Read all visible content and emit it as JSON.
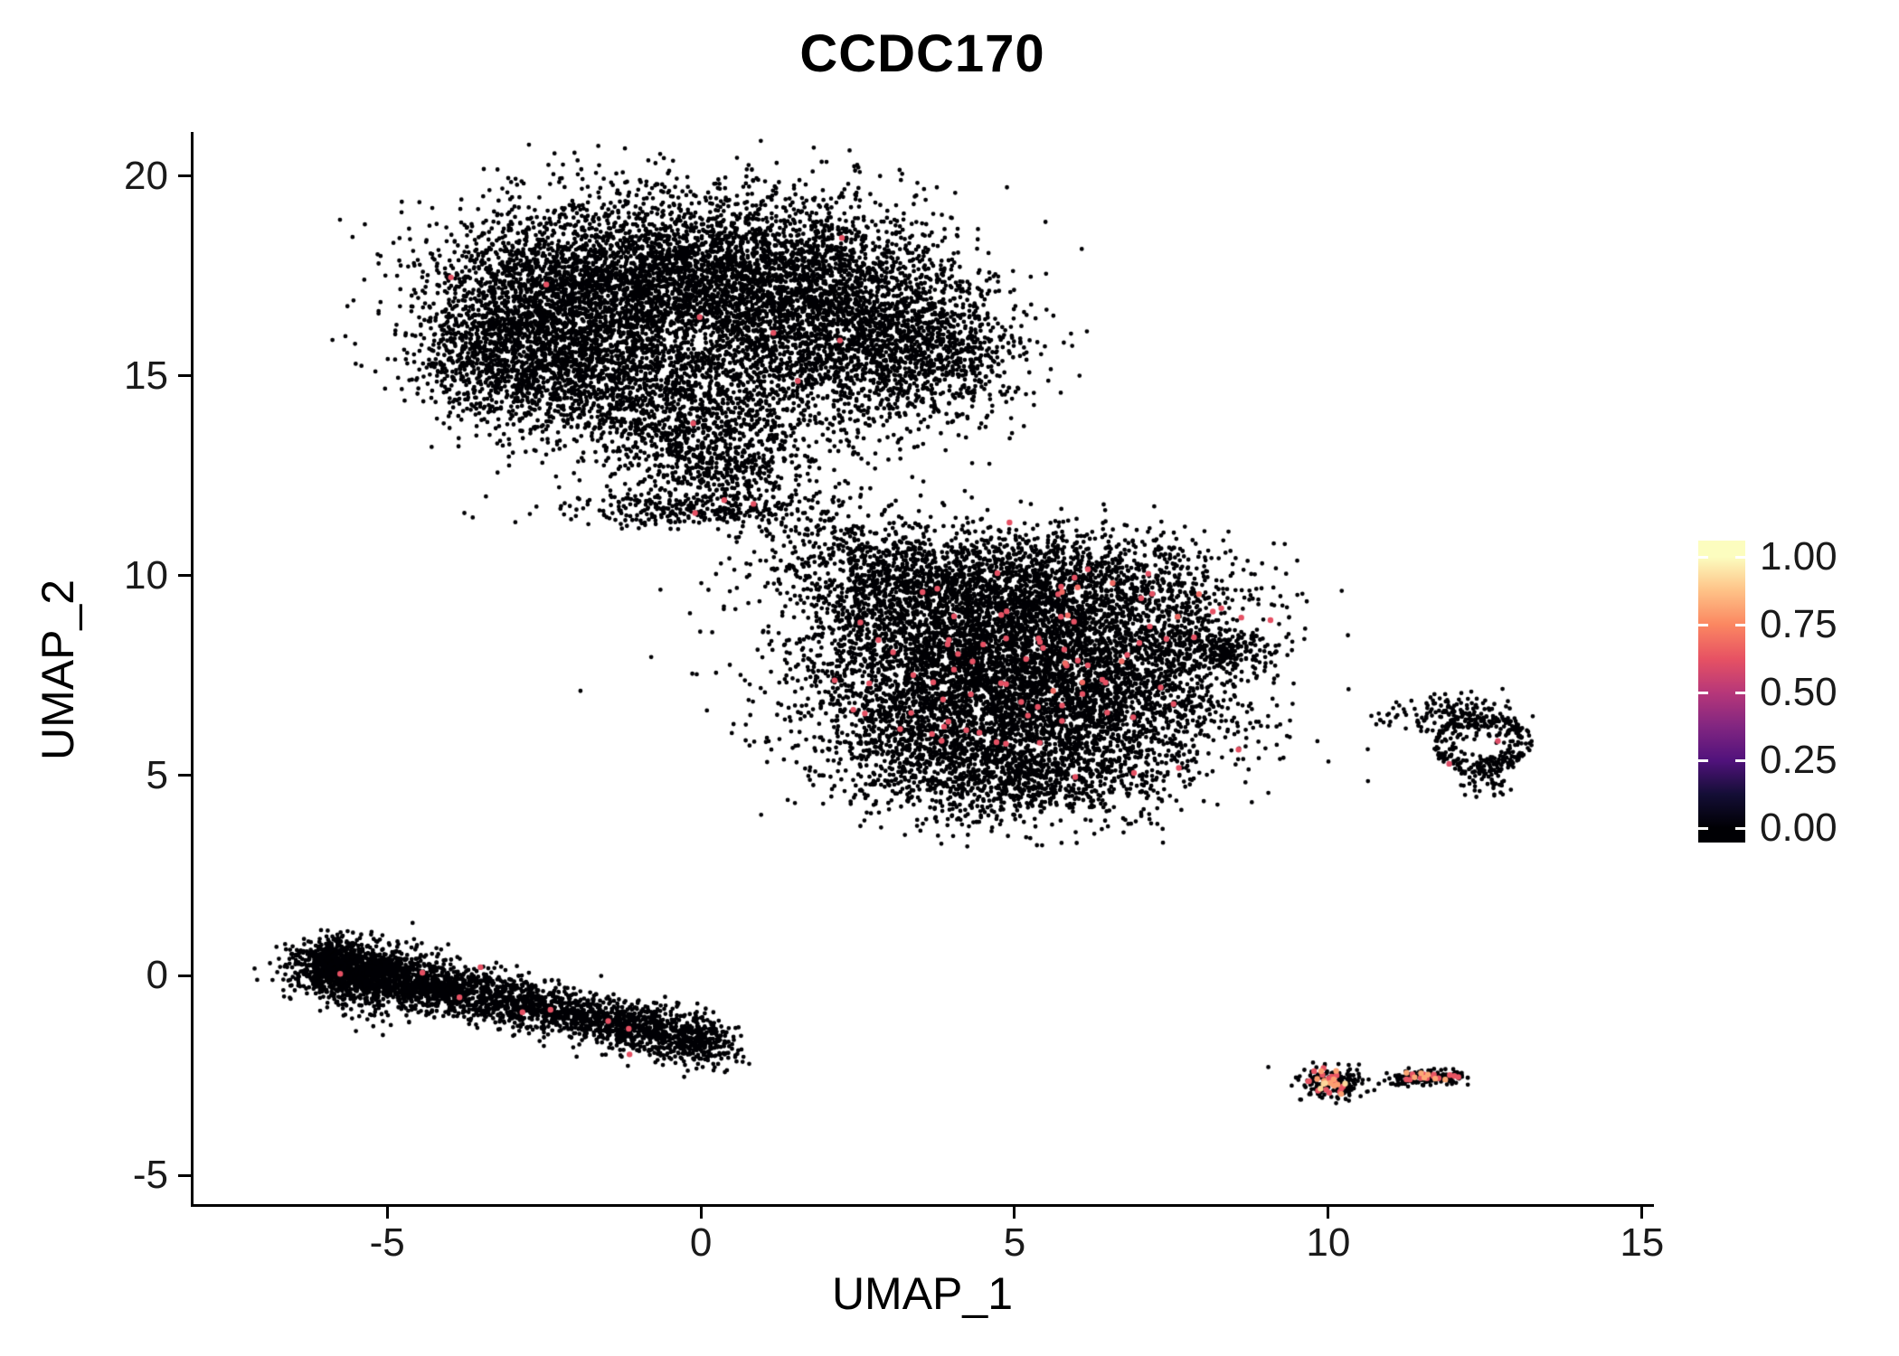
{
  "chart_data": {
    "type": "scatter",
    "title": "CCDC170",
    "xlabel": "UMAP_1",
    "ylabel": "UMAP_2",
    "xlim": [
      -8.13,
      15.19
    ],
    "ylim": [
      -5.79,
      21.06
    ],
    "x_ticks": [
      -5,
      0,
      5,
      10,
      15
    ],
    "y_ticks": [
      -5,
      0,
      5,
      10,
      15,
      20
    ],
    "grid": false,
    "legend": {
      "position": "right",
      "ticks": [
        {
          "value": 1.0,
          "label": "1.00"
        },
        {
          "value": 0.75,
          "label": "0.75"
        },
        {
          "value": 0.5,
          "label": "0.50"
        },
        {
          "value": 0.25,
          "label": "0.25"
        },
        {
          "value": 0.0,
          "label": "0.00"
        }
      ]
    },
    "colormap_stops": [
      [
        0,
        "#000004"
      ],
      [
        0.125,
        "#140e36"
      ],
      [
        0.25,
        "#51127c"
      ],
      [
        0.375,
        "#822681"
      ],
      [
        0.5,
        "#b73779"
      ],
      [
        0.625,
        "#e75263"
      ],
      [
        0.75,
        "#fb8761"
      ],
      [
        0.875,
        "#fec287"
      ],
      [
        1,
        "#fcfdbf"
      ]
    ],
    "point_style": {
      "radius": 2.4,
      "expressed_radius": 3.2
    },
    "clusters": [
      {
        "name": "top-blob-core-left",
        "type": "gauss",
        "n": 3000,
        "cx": -2.2,
        "cy": 16.6,
        "sx": 1.15,
        "sy": 1.35,
        "v": 0
      },
      {
        "name": "top-blob-core-top",
        "type": "gauss",
        "n": 2600,
        "cx": 0.3,
        "cy": 17.6,
        "sx": 1.4,
        "sy": 1.05,
        "v": 0
      },
      {
        "name": "top-blob-core-right",
        "type": "gauss",
        "n": 2200,
        "cx": 2.2,
        "cy": 16.3,
        "sx": 1.15,
        "sy": 1.3,
        "v": 0
      },
      {
        "name": "top-blob-right-lobe",
        "type": "gauss",
        "n": 700,
        "cx": 3.7,
        "cy": 15.7,
        "sx": 0.75,
        "sy": 0.85,
        "v": 0
      },
      {
        "name": "top-blob-bottom",
        "type": "gauss",
        "n": 1000,
        "cx": -0.6,
        "cy": 14.6,
        "sx": 1.3,
        "sy": 0.7,
        "v": 0
      },
      {
        "name": "top-blob-left-edge",
        "type": "gauss",
        "n": 500,
        "cx": -3.2,
        "cy": 15.4,
        "sx": 0.6,
        "sy": 0.8,
        "v": 0
      },
      {
        "name": "top-blob-tail-upper",
        "type": "gauss",
        "n": 450,
        "cx": 0.0,
        "cy": 13.4,
        "sx": 0.85,
        "sy": 0.55,
        "v": 0
      },
      {
        "name": "top-blob-tail-mid",
        "type": "gauss",
        "n": 300,
        "cx": 0.5,
        "cy": 12.4,
        "sx": 0.7,
        "sy": 0.5,
        "v": 0
      },
      {
        "name": "top-blob-tail-thin",
        "type": "gauss",
        "n": 260,
        "cx": -0.2,
        "cy": 11.65,
        "sx": 1.0,
        "sy": 0.2,
        "v": 0
      },
      {
        "name": "bridge-sparse",
        "type": "gauss",
        "n": 230,
        "cx": 2.3,
        "cy": 10.8,
        "sx": 0.85,
        "sy": 0.65,
        "v": 0
      },
      {
        "name": "center-blob-core",
        "type": "gauss",
        "n": 3000,
        "cx": 4.2,
        "cy": 8.1,
        "sx": 1.4,
        "sy": 1.3,
        "v": 0
      },
      {
        "name": "center-blob-right",
        "type": "gauss",
        "n": 2600,
        "cx": 6.1,
        "cy": 7.0,
        "sx": 1.3,
        "sy": 1.2,
        "v": 0
      },
      {
        "name": "center-blob-top",
        "type": "gauss",
        "n": 1400,
        "cx": 5.3,
        "cy": 9.4,
        "sx": 1.5,
        "sy": 0.75,
        "v": 0
      },
      {
        "name": "center-blob-lower-left",
        "type": "gauss",
        "n": 900,
        "cx": 3.6,
        "cy": 5.9,
        "sx": 0.9,
        "sy": 0.9,
        "v": 0
      },
      {
        "name": "center-blob-bottom",
        "type": "gauss",
        "n": 600,
        "cx": 5.2,
        "cy": 4.9,
        "sx": 1.0,
        "sy": 0.5,
        "v": 0
      },
      {
        "name": "center-blob-upper-left",
        "type": "gauss",
        "n": 400,
        "cx": 3.0,
        "cy": 9.9,
        "sx": 0.8,
        "sy": 0.55,
        "v": 0
      },
      {
        "name": "center-blob-right-tip",
        "type": "gauss",
        "n": 250,
        "cx": 8.2,
        "cy": 8.2,
        "sx": 0.5,
        "sy": 0.3,
        "v": 0
      },
      {
        "name": "center-blob-top-sparse",
        "type": "gauss",
        "n": 300,
        "cx": 5.8,
        "cy": 10.4,
        "sx": 1.3,
        "sy": 0.5,
        "v": 0
      },
      {
        "name": "center-blob-right-sparse",
        "type": "gauss",
        "n": 120,
        "cx": 7.6,
        "cy": 9.1,
        "sx": 0.6,
        "sy": 0.6,
        "v": 0
      },
      {
        "name": "center-stray",
        "type": "gauss",
        "n": 2,
        "cx": 6.9,
        "cy": 3.9,
        "sx": 0.08,
        "sy": 0.08,
        "v": 0
      },
      {
        "name": "ring-cluster-annulus",
        "type": "ring",
        "n": 260,
        "cx": 12.45,
        "cy": 5.8,
        "r0": 0.3,
        "r1": 0.8,
        "squash": 0.95,
        "v": 0
      },
      {
        "name": "ring-cluster-top",
        "type": "gauss",
        "n": 150,
        "cx": 12.1,
        "cy": 6.45,
        "sx": 0.45,
        "sy": 0.28,
        "v": 0
      },
      {
        "name": "ring-cluster-bottom-tail",
        "type": "gauss",
        "n": 60,
        "cx": 12.5,
        "cy": 4.95,
        "sx": 0.22,
        "sy": 0.3,
        "v": 0
      },
      {
        "name": "ring-cluster-left-strays",
        "type": "gauss",
        "n": 25,
        "cx": 11.3,
        "cy": 6.5,
        "sx": 0.4,
        "sy": 0.18,
        "v": 0
      },
      {
        "name": "elongated-cluster",
        "type": "line",
        "n": 3000,
        "x0": -6.1,
        "y0": 0.3,
        "x1": 0.35,
        "y1": -1.75,
        "sx": 0.22,
        "sy": 0.3,
        "bias": 1.1,
        "v": 0
      },
      {
        "name": "elongated-cluster-left-bulge",
        "type": "gauss",
        "n": 700,
        "cx": -5.3,
        "cy": 0.0,
        "sx": 0.55,
        "sy": 0.45,
        "v": 0
      },
      {
        "name": "elongated-cluster-left-tip",
        "type": "gauss",
        "n": 250,
        "cx": -6.0,
        "cy": 0.3,
        "sx": 0.3,
        "sy": 0.3,
        "v": 0
      },
      {
        "name": "small-cluster-left-base",
        "type": "gauss",
        "n": 170,
        "cx": 10.05,
        "cy": -2.7,
        "sx": 0.28,
        "sy": 0.2,
        "v": 0
      },
      {
        "name": "small-cluster-right-base",
        "type": "line",
        "n": 140,
        "x0": 11.05,
        "y0": -2.6,
        "x1": 12.15,
        "y1": -2.5,
        "sx": 0.1,
        "sy": 0.09,
        "v": 0
      },
      {
        "name": "expressed-center-blob",
        "type": "gauss",
        "n": 80,
        "cx": 5.3,
        "cy": 7.7,
        "sx": 1.55,
        "sy": 1.45,
        "v": 0.62
      },
      {
        "name": "expressed-center-blob-bright",
        "type": "gauss",
        "n": 10,
        "cx": 6.3,
        "cy": 8.6,
        "sx": 1.0,
        "sy": 0.9,
        "v": 0.68
      },
      {
        "name": "expressed-top-blob",
        "type": "gauss",
        "n": 8,
        "cx": -0.6,
        "cy": 16.0,
        "sx": 1.9,
        "sy": 1.8,
        "v": 0.62
      },
      {
        "name": "expressed-bridge",
        "type": "gauss",
        "n": 3,
        "cx": 0.3,
        "cy": 11.9,
        "sx": 0.5,
        "sy": 0.3,
        "v": 0.62
      },
      {
        "name": "expressed-elongated",
        "type": "line",
        "n": 9,
        "x0": -5.9,
        "y0": 0.25,
        "x1": -0.1,
        "y1": -1.6,
        "sx": 0.3,
        "sy": 0.25,
        "v": 0.62
      },
      {
        "name": "expressed-ring",
        "type": "gauss",
        "n": 2,
        "cx": 12.1,
        "cy": 5.9,
        "sx": 0.5,
        "sy": 0.7,
        "v": 0.6
      },
      {
        "name": "expressed-small-left",
        "type": "gauss",
        "n": 18,
        "cx": 10.05,
        "cy": -2.7,
        "sx": 0.25,
        "sy": 0.18,
        "v": 0.63
      },
      {
        "name": "expressed-small-left-bright",
        "type": "gauss",
        "n": 10,
        "cx": 10.0,
        "cy": -2.68,
        "sx": 0.2,
        "sy": 0.15,
        "v": 0.8
      },
      {
        "name": "expressed-small-left-pale",
        "type": "gauss",
        "n": 4,
        "cx": 10.1,
        "cy": -2.72,
        "sx": 0.15,
        "sy": 0.12,
        "v": 0.92
      },
      {
        "name": "expressed-small-right",
        "type": "line",
        "n": 12,
        "x0": 11.2,
        "y0": -2.58,
        "x1": 12.1,
        "y1": -2.5,
        "sx": 0.1,
        "sy": 0.08,
        "v": 0.63
      },
      {
        "name": "expressed-small-right-bright",
        "type": "line",
        "n": 7,
        "x0": 11.3,
        "y0": -2.56,
        "x1": 12.0,
        "y1": -2.52,
        "sx": 0.08,
        "sy": 0.07,
        "v": 0.82
      }
    ]
  }
}
